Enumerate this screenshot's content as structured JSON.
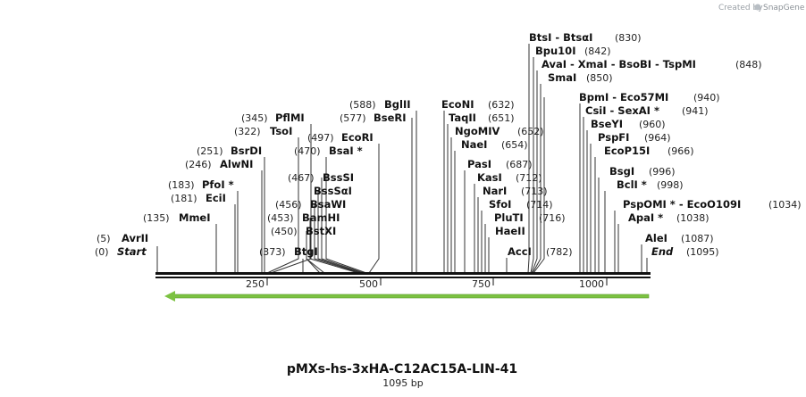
{
  "credit": {
    "prefix": "Created by",
    "brand": "SnapGene"
  },
  "map": {
    "name": "pMXs-hs-3xHA-C12AC15A-LIN-41",
    "length_label": "1095 bp",
    "length": 1095,
    "ticks": [
      "250",
      "500",
      "750",
      "1000"
    ],
    "tick_values": [
      250,
      500,
      750,
      1000
    ]
  },
  "sites": [
    {
      "label": "AvrII",
      "pos": "(5)",
      "loc": 5,
      "star": false
    },
    {
      "label": "Start",
      "pos": "(0)",
      "loc": 0,
      "star": false,
      "italic": true
    },
    {
      "label": "MmeI",
      "pos": "(135)",
      "loc": 135,
      "star": false
    },
    {
      "label": "EciI",
      "pos": "(181)",
      "loc": 181,
      "star": false
    },
    {
      "label": "PfoI *",
      "pos": "(183)",
      "loc": 183,
      "star": true
    },
    {
      "label": "AlwNI",
      "pos": "(246)",
      "loc": 246,
      "star": false
    },
    {
      "label": "BsrDI",
      "pos": "(251)",
      "loc": 251,
      "star": false
    },
    {
      "label": "TsoI",
      "pos": "(322)",
      "loc": 322,
      "star": false
    },
    {
      "label": "PflMI",
      "pos": "(345)",
      "loc": 345,
      "star": false
    },
    {
      "label": "BtgI",
      "pos": "(373)",
      "loc": 373,
      "star": false
    },
    {
      "label": "BstXI",
      "pos": "(450)",
      "loc": 450,
      "star": false
    },
    {
      "label": "BamHI",
      "pos": "(453)",
      "loc": 453,
      "star": false
    },
    {
      "label": "BsaWI",
      "pos": "(456)",
      "loc": 456,
      "star": false
    },
    {
      "label": "BssSαI",
      "pos": "",
      "loc": 467,
      "star": false
    },
    {
      "label": "BssSI",
      "pos": "(467)",
      "loc": 467,
      "star": false
    },
    {
      "label": "BsaI *",
      "pos": "(470)",
      "loc": 470,
      "star": true
    },
    {
      "label": "EcoRI",
      "pos": "(497)",
      "loc": 497,
      "star": false
    },
    {
      "label": "BseRI",
      "pos": "(577)",
      "loc": 577,
      "star": false
    },
    {
      "label": "BglII",
      "pos": "(588)",
      "loc": 588,
      "star": false
    },
    {
      "label": "EcoNI",
      "pos": "(632)",
      "loc": 632,
      "star": false
    },
    {
      "label": "TaqII",
      "pos": "(651)",
      "loc": 651,
      "star": false
    },
    {
      "label": "NgoMIV",
      "pos": "(652)",
      "loc": 652,
      "star": false
    },
    {
      "label": "NaeI",
      "pos": "(654)",
      "loc": 654,
      "star": false
    },
    {
      "label": "PasI",
      "pos": "(687)",
      "loc": 687,
      "star": false
    },
    {
      "label": "KasI",
      "pos": "(712)",
      "loc": 712,
      "star": false
    },
    {
      "label": "NarI",
      "pos": "(713)",
      "loc": 713,
      "star": false
    },
    {
      "label": "SfoI",
      "pos": "(714)",
      "loc": 714,
      "star": false
    },
    {
      "label": "PluTI",
      "pos": "(716)",
      "loc": 716,
      "star": false
    },
    {
      "label": "HaeII",
      "pos": "",
      "loc": 716,
      "star": false
    },
    {
      "label": "AccI",
      "pos": "(782)",
      "loc": 782,
      "star": false
    },
    {
      "label": "BtsI  -  BtsαI",
      "pos": "(830)",
      "loc": 830,
      "star": false
    },
    {
      "label": "Bpu10I",
      "pos": "(842)",
      "loc": 842,
      "star": false
    },
    {
      "label": "AvaI  -  XmaI  -  BsoBI  -  TspMI",
      "pos": "(848)",
      "loc": 848,
      "star": false
    },
    {
      "label": "SmaI",
      "pos": "(850)",
      "loc": 850,
      "star": false
    },
    {
      "label": "BpmI  -  Eco57MI",
      "pos": "(940)",
      "loc": 940,
      "star": false
    },
    {
      "label": "CsiI  -  SexAI *",
      "pos": "(941)",
      "loc": 941,
      "star": true
    },
    {
      "label": "BseYI",
      "pos": "(960)",
      "loc": 960,
      "star": false
    },
    {
      "label": "PspFI",
      "pos": "(964)",
      "loc": 964,
      "star": false
    },
    {
      "label": "EcoP15I",
      "pos": "(966)",
      "loc": 966,
      "star": false
    },
    {
      "label": "BsgI",
      "pos": "(996)",
      "loc": 996,
      "star": false
    },
    {
      "label": "BclI *",
      "pos": "(998)",
      "loc": 998,
      "star": true
    },
    {
      "label": "PspOMI *  -  EcoO109I",
      "pos": "(1034)",
      "loc": 1034,
      "star": true
    },
    {
      "label": "ApaI *",
      "pos": "(1038)",
      "loc": 1038,
      "star": true
    },
    {
      "label": "AleI",
      "pos": "(1087)",
      "loc": 1087,
      "star": false
    },
    {
      "label": "End",
      "pos": "(1095)",
      "loc": 1095,
      "star": false,
      "italic": true
    }
  ],
  "colors": {
    "backbone": "#111111",
    "arrow": "#7cc242",
    "credit": "#9aa0a6",
    "leader": "#333333"
  }
}
